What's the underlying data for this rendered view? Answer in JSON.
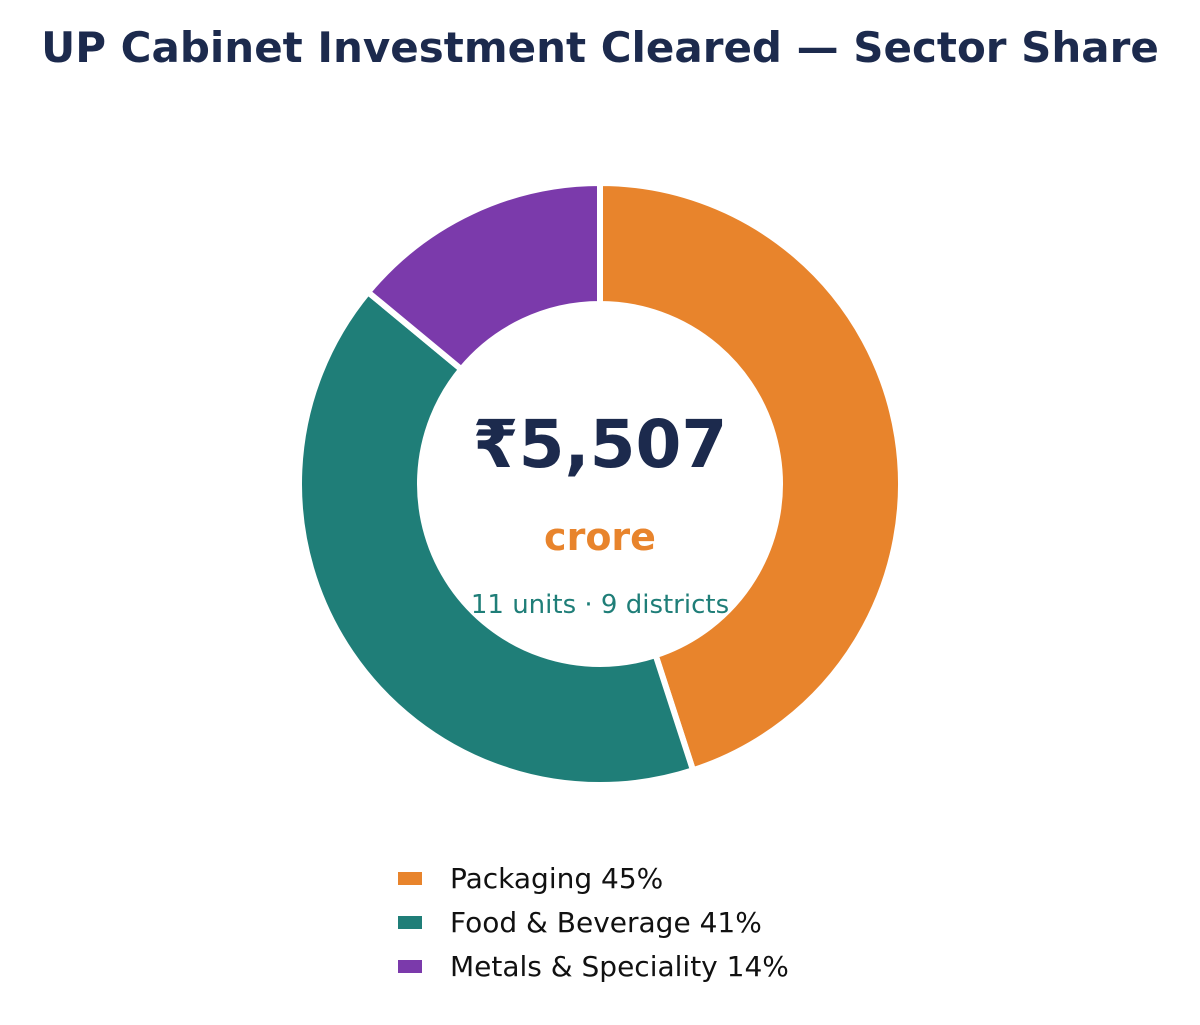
{
  "chart_data": {
    "type": "pie",
    "variant": "donut",
    "title": "UP Cabinet Investment Cleared — Sector Share",
    "categories": [
      "Packaging",
      "Food & Beverage",
      "Metals & Speciality"
    ],
    "values": [
      45,
      41,
      14
    ],
    "unit": "%",
    "colors": [
      "#e8842c",
      "#1f7e78",
      "#7b3aab"
    ],
    "legend_labels": [
      "Packaging 45%",
      "Food & Beverage 41%",
      "Metals & Speciality 14%"
    ],
    "legend_position": "bottom-center",
    "center_text": {
      "amount": "₹5,507",
      "unit": "crore",
      "detail": "11 units · 9 districts"
    }
  },
  "theme": {
    "title_color": "#1c2a4d",
    "amount_color": "#1c2a4d",
    "unit_color": "#e8842c",
    "detail_color": "#1f7e78"
  }
}
